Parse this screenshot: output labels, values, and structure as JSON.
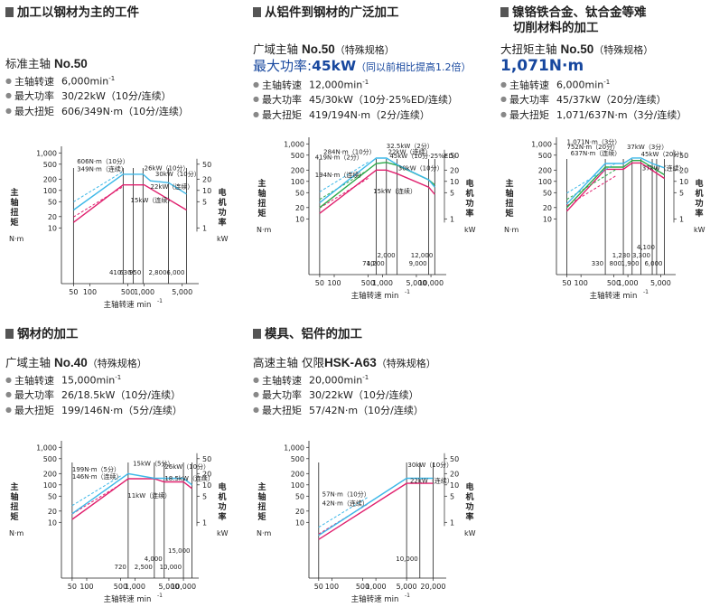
{
  "panels": [
    {
      "title_lines": [
        "加工以钢材为主的工件"
      ],
      "spindle": {
        "prefix": "标准主轴",
        "model": "No.50",
        "suffix": ""
      },
      "highlight": null,
      "specs": [
        {
          "k": "主轴转速",
          "v": "6,000min",
          "sup": "-1"
        },
        {
          "k": "最大功率",
          "v": "30/22kW（10分/连续）"
        },
        {
          "k": "最大扭矩",
          "v": "606/349N·m（10分/连续）"
        }
      ]
    },
    {
      "title_lines": [
        "从铝件到钢材的广泛加工"
      ],
      "spindle": {
        "prefix": "广域主轴",
        "model": "No.50",
        "suffix": "（特殊规格）"
      },
      "highlight": {
        "prefix": "最大功率:",
        "value": "45kW",
        "note": "（同以前相比提高1.2倍）"
      },
      "specs": [
        {
          "k": "主轴转速",
          "v": "12,000min",
          "sup": "-1"
        },
        {
          "k": "最大功率",
          "v": "45/30kW（10分·25%ED/连续）"
        },
        {
          "k": "最大扭矩",
          "v": "419/194N·m（2分/连续）"
        }
      ]
    },
    {
      "title_lines": [
        "镍铬铁合金、钛合金等难",
        "切削材料的加工"
      ],
      "spindle": {
        "prefix": "大扭矩主轴",
        "model": "No.50",
        "suffix": "（特殊规格）"
      },
      "highlight": {
        "prefix": "",
        "value": "1,071N·m",
        "note": ""
      },
      "specs": [
        {
          "k": "主轴转速",
          "v": "6,000min",
          "sup": "-1"
        },
        {
          "k": "最大功率",
          "v": "45/37kW（20分/连续）"
        },
        {
          "k": "最大扭矩",
          "v": "1,071/637N·m（3分/连续）"
        }
      ]
    },
    {
      "title_lines": [
        "钢材的加工"
      ],
      "spindle": {
        "prefix": "广域主轴",
        "model": "No.40",
        "suffix": "（特殊规格）"
      },
      "highlight": null,
      "specs": [
        {
          "k": "主轴转速",
          "v": "15,000min",
          "sup": "-1"
        },
        {
          "k": "最大功率",
          "v": "26/18.5kW（10分/连续）"
        },
        {
          "k": "最大扭矩",
          "v": "199/146N·m（5分/连续）"
        }
      ]
    },
    {
      "title_lines": [
        "模具、铝件的加工"
      ],
      "spindle": {
        "prefix": "高速主轴 仅限",
        "model": "HSK-A63",
        "suffix": "（特殊规格）"
      },
      "highlight": null,
      "specs": [
        {
          "k": "主轴转速",
          "v": "20,000min",
          "sup": "-1"
        },
        {
          "k": "最大功率",
          "v": "30/22kW（10分/连续）"
        },
        {
          "k": "最大扭矩",
          "v": "57/42N·m（10分/连续）"
        }
      ]
    }
  ],
  "chart_data": [
    {
      "type": "line",
      "y_left_label": "主轴扭矩",
      "y_left_unit": "N·m",
      "y_right_label": "电机功率",
      "y_right_unit": "kW",
      "x_label": "主轴转速 min",
      "x_label_sup": "-1",
      "x_ticks": [
        "50",
        "100",
        "500",
        "1,000",
        "5,000"
      ],
      "y_left_ticks": [
        "1,000",
        "500",
        "200",
        "100",
        "50",
        "20",
        "10"
      ],
      "y_right_ticks": [
        "50",
        "20",
        "10",
        "5",
        "1"
      ],
      "x_range": [
        30,
        8000
      ],
      "y_range": [
        3,
        1200
      ],
      "vlines": [
        {
          "x": 50,
          "label": "",
          "row": 0
        },
        {
          "x": 410,
          "label": "410",
          "row": 0
        },
        {
          "x": 630,
          "label": "630",
          "row": 0
        },
        {
          "x": 950,
          "label": "950",
          "row": 0
        },
        {
          "x": 2800,
          "label": "2,800",
          "row": 0
        },
        {
          "x": 6000,
          "label": "6,000",
          "row": 0
        }
      ],
      "series": [
        {
          "color": "#e0206e",
          "points": [
            [
              50,
              14
            ],
            [
              410,
              140
            ],
            [
              1000,
              140
            ],
            [
              6000,
              30
            ]
          ]
        },
        {
          "color": "#3db8e8",
          "points": [
            [
              50,
              30
            ],
            [
              410,
              270
            ],
            [
              950,
              270
            ],
            [
              1300,
              180
            ],
            [
              2800,
              160
            ],
            [
              6000,
              80
            ]
          ]
        }
      ],
      "annotations": [
        {
          "text": "606N·m（10分）",
          "x": 58,
          "y": 520
        },
        {
          "text": "349N·m（连续）",
          "x": 58,
          "y": 330
        },
        {
          "text": "26kW（10分）",
          "x": 1000,
          "y": 345
        },
        {
          "text": "30kW（10分）",
          "x": 1600,
          "y": 240
        },
        {
          "text": "22kW（连续）",
          "x": 1300,
          "y": 110
        },
        {
          "text": "15kW（连续）",
          "x": 560,
          "y": 48
        }
      ]
    },
    {
      "type": "line",
      "y_left_label": "主轴扭矩",
      "y_left_unit": "N·m",
      "y_right_label": "电机功率",
      "y_right_unit": "kW",
      "x_label": "主轴转速 min",
      "x_label_sup": "-1",
      "x_ticks": [
        "50",
        "100",
        "500",
        "1,000",
        "5,000",
        "10,000"
      ],
      "y_left_ticks": [
        "1,000",
        "500",
        "200",
        "100",
        "50",
        "20",
        "10"
      ],
      "y_right_ticks": [
        "50",
        "20",
        "10",
        "5",
        "1"
      ],
      "x_range": [
        30,
        16000
      ],
      "y_range": [
        3,
        1200
      ],
      "vlines": [
        {
          "x": 50,
          "label": "",
          "row": 0
        },
        {
          "x": 740,
          "label": "740",
          "row": 0
        },
        {
          "x": 1200,
          "label": "1,200",
          "row": 0
        },
        {
          "x": 2000,
          "label": "2,000",
          "row": 1
        },
        {
          "x": 9000,
          "label": "9,000",
          "row": 0
        },
        {
          "x": 12000,
          "label": "12,000",
          "row": 1
        }
      ],
      "series": [
        {
          "color": "#e0206e",
          "points": [
            [
              50,
              14
            ],
            [
              740,
              200
            ],
            [
              1200,
              200
            ],
            [
              2000,
              160
            ],
            [
              9000,
              70
            ],
            [
              12000,
              45
            ]
          ]
        },
        {
          "color": "#2ca84a",
          "points": [
            [
              50,
              20
            ],
            [
              740,
              300
            ],
            [
              1200,
              320
            ],
            [
              2000,
              270
            ],
            [
              9000,
              110
            ],
            [
              12000,
              80
            ]
          ]
        },
        {
          "color": "#3db8e8",
          "points": [
            [
              50,
              27
            ],
            [
              740,
              419
            ],
            [
              1200,
              419
            ],
            [
              2000,
              280
            ],
            [
              9000,
              110
            ],
            [
              12000,
              70
            ]
          ]
        }
      ],
      "annotations": [
        {
          "text": "32.5kW（2分）",
          "x": 1200,
          "y": 760
        },
        {
          "text": "284N·m（10分）",
          "x": 60,
          "y": 540
        },
        {
          "text": "22kW（连续）",
          "x": 1300,
          "y": 540
        },
        {
          "text": "419N·m（2分）",
          "x": 40,
          "y": 390
        },
        {
          "text": "45kW（10分·25%ED）",
          "x": 1400,
          "y": 420
        },
        {
          "text": "30kW（10分）",
          "x": 2100,
          "y": 200
        },
        {
          "text": "194N·m（连续）",
          "x": 40,
          "y": 130
        },
        {
          "text": "15kW（连续）",
          "x": 640,
          "y": 48
        }
      ]
    },
    {
      "type": "line",
      "y_left_label": "主轴扭矩",
      "y_left_unit": "N·m",
      "y_right_label": "电机功率",
      "y_right_unit": "kW",
      "x_label": "主轴转速 min",
      "x_label_sup": "-1",
      "x_ticks": [
        "50",
        "100",
        "500",
        "1,000",
        "5,000"
      ],
      "y_left_ticks": [
        "1,000",
        "500",
        "200",
        "100",
        "50",
        "20",
        "10"
      ],
      "y_right_ticks": [
        "50",
        "20",
        "10",
        "5",
        "1"
      ],
      "x_range": [
        30,
        8000
      ],
      "y_range": [
        3,
        1200
      ],
      "vlines": [
        {
          "x": 50,
          "label": "",
          "row": 0
        },
        {
          "x": 330,
          "label": "330",
          "row": 0
        },
        {
          "x": 800,
          "label": "800",
          "row": 0
        },
        {
          "x": 1230,
          "label": "1,230",
          "row": 1
        },
        {
          "x": 1900,
          "label": "1,900",
          "row": 0
        },
        {
          "x": 3300,
          "label": "3,300",
          "row": 1
        },
        {
          "x": 4100,
          "label": "4,100",
          "row": 2
        },
        {
          "x": 6000,
          "label": "6,000",
          "row": 0
        }
      ],
      "series": [
        {
          "color": "#e0206e",
          "points": [
            [
              50,
              16
            ],
            [
              330,
              210
            ],
            [
              800,
              210
            ],
            [
              1230,
              310
            ],
            [
              1900,
              310
            ],
            [
              6000,
              120
            ]
          ]
        },
        {
          "color": "#2ca84a",
          "points": [
            [
              50,
              20
            ],
            [
              330,
              240
            ],
            [
              800,
              240
            ],
            [
              1230,
              360
            ],
            [
              1900,
              360
            ],
            [
              6000,
              150
            ]
          ]
        },
        {
          "color": "#3db8e8",
          "points": [
            [
              50,
              25
            ],
            [
              330,
              300
            ],
            [
              800,
              300
            ],
            [
              1230,
              420
            ],
            [
              1900,
              420
            ],
            [
              3300,
              300
            ],
            [
              6000,
              230
            ]
          ]
        }
      ],
      "annotations": [
        {
          "text": "1,071N·m（3分）",
          "x": 50,
          "y": 1000
        },
        {
          "text": "752N·m（20分）",
          "x": 50,
          "y": 720
        },
        {
          "text": "637N·m（连续）",
          "x": 60,
          "y": 500
        },
        {
          "text": "37kW（3分）",
          "x": 950,
          "y": 720
        },
        {
          "text": "45kW（20分）",
          "x": 1900,
          "y": 470
        },
        {
          "text": "37kW（连续）",
          "x": 2000,
          "y": 200
        }
      ]
    },
    {
      "type": "line",
      "y_left_label": "主轴扭矩",
      "y_left_unit": "N·m",
      "y_right_label": "电机功率",
      "y_right_unit": "kW",
      "x_label": "主轴转速 min",
      "x_label_sup": "-1",
      "x_ticks": [
        "50",
        "100",
        "500",
        "1,000",
        "5,000",
        "10,000"
      ],
      "y_left_ticks": [
        "1,000",
        "500",
        "200",
        "100",
        "50",
        "20",
        "10"
      ],
      "y_right_ticks": [
        "50",
        "20",
        "10",
        "5",
        "1"
      ],
      "x_range": [
        30,
        16000
      ],
      "y_range": [
        3,
        1200
      ],
      "vlines": [
        {
          "x": 50,
          "label": "",
          "row": 0
        },
        {
          "x": 720,
          "label": "720",
          "row": 0
        },
        {
          "x": 2500,
          "label": "2,500",
          "row": 0
        },
        {
          "x": 4000,
          "label": "4,000",
          "row": 1
        },
        {
          "x": 10000,
          "label": "10,000",
          "row": 0
        },
        {
          "x": 15000,
          "label": "15,000",
          "row": 2
        }
      ],
      "series": [
        {
          "color": "#e0206e",
          "points": [
            [
              50,
              12
            ],
            [
              720,
              146
            ],
            [
              2500,
              146
            ],
            [
              4000,
              120
            ],
            [
              10000,
              120
            ],
            [
              15000,
              80
            ]
          ]
        },
        {
          "color": "#3db8e8",
          "points": [
            [
              50,
              17
            ],
            [
              720,
              199
            ],
            [
              2500,
              150
            ],
            [
              4000,
              150
            ],
            [
              10000,
              150
            ],
            [
              15000,
              100
            ]
          ]
        }
      ],
      "annotations": [
        {
          "text": "15kW（5分）",
          "x": 900,
          "y": 330
        },
        {
          "text": "26kW（10分）",
          "x": 4100,
          "y": 270
        },
        {
          "text": "199N·m（5分）",
          "x": 50,
          "y": 230
        },
        {
          "text": "18.5kW（连续）",
          "x": 4100,
          "y": 130
        },
        {
          "text": "146N·m（连续）",
          "x": 50,
          "y": 145
        },
        {
          "text": "11kW（连续）",
          "x": 700,
          "y": 45
        }
      ]
    },
    {
      "type": "line",
      "y_left_label": "主轴扭矩",
      "y_left_unit": "N·m",
      "y_right_label": "电机功率",
      "y_right_unit": "kW",
      "x_label": "主轴转速 min",
      "x_label_sup": "-1",
      "x_ticks": [
        "50",
        "100",
        "500",
        "1,000",
        "5,000",
        "20,000"
      ],
      "y_left_ticks": [
        "1,000",
        "500",
        "200",
        "100",
        "50",
        "20",
        "10"
      ],
      "y_right_ticks": [
        "50",
        "20",
        "10",
        "5",
        "1"
      ],
      "x_range": [
        30,
        30000
      ],
      "y_range": [
        3,
        1200
      ],
      "vlines": [
        {
          "x": 50,
          "label": "",
          "row": 0
        },
        {
          "x": 5000,
          "label": "",
          "row": 0
        },
        {
          "x": 10000,
          "label": "10,000",
          "row": 1
        },
        {
          "x": 20000,
          "label": "",
          "row": 0
        }
      ],
      "series": [
        {
          "color": "#e0206e",
          "points": [
            [
              50,
              3.5
            ],
            [
              5000,
              110
            ],
            [
              10000,
              110
            ],
            [
              20000,
              110
            ]
          ]
        },
        {
          "color": "#3db8e8",
          "points": [
            [
              50,
              4.5
            ],
            [
              5000,
              150
            ],
            [
              10000,
              150
            ],
            [
              20000,
              150
            ]
          ]
        }
      ],
      "annotations": [
        {
          "text": "30kW（10分）",
          "x": 5300,
          "y": 300
        },
        {
          "text": "22kW（连续）",
          "x": 6000,
          "y": 115
        },
        {
          "text": "57N·m（10分）",
          "x": 60,
          "y": 50
        },
        {
          "text": "42N·m（连续）",
          "x": 60,
          "y": 28
        }
      ]
    }
  ]
}
